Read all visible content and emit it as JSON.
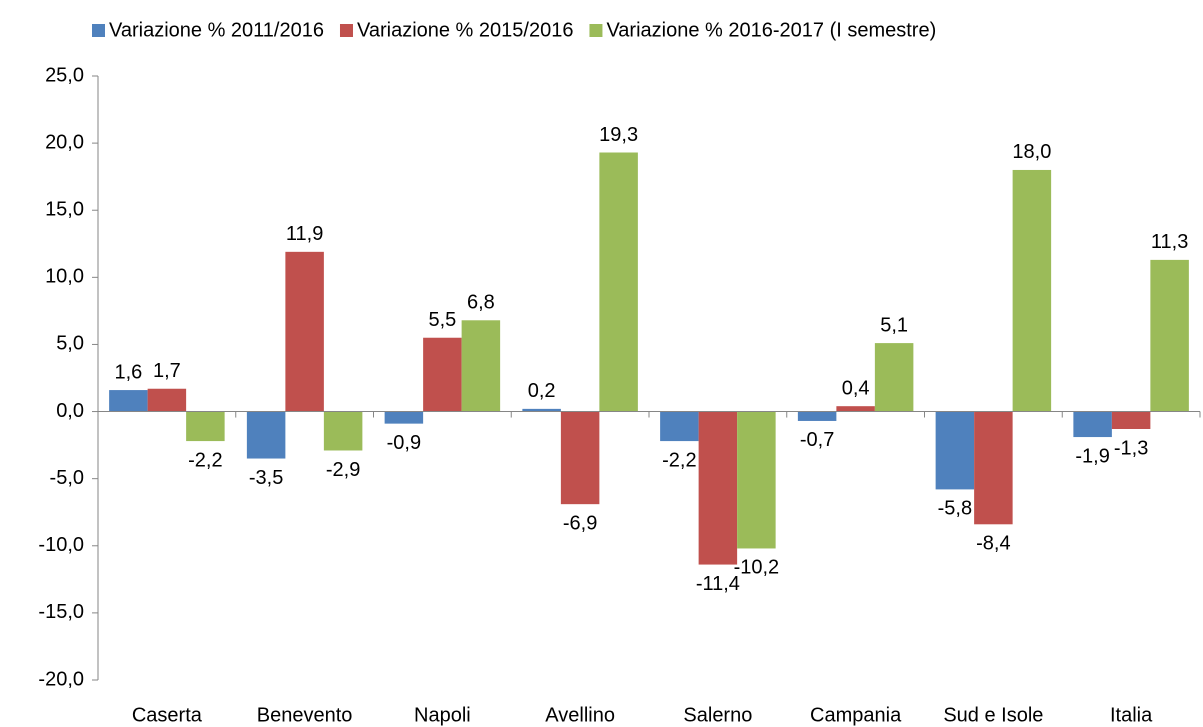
{
  "chart_data": {
    "type": "bar",
    "categories": [
      "Caserta",
      "Benevento",
      "Napoli",
      "Avellino",
      "Salerno",
      "Campania",
      "Sud e Isole",
      "Italia"
    ],
    "series": [
      {
        "name": "Variazione % 2011/2016",
        "color": "#4f81bd",
        "values": [
          1.6,
          -3.5,
          -0.9,
          0.2,
          -2.2,
          -0.7,
          -5.8,
          -1.9
        ],
        "value_labels": [
          "1,6",
          "-3,5",
          "-0,9",
          "0,2",
          "-2,2",
          "-0,7",
          "-5,8",
          "-1,9"
        ]
      },
      {
        "name": "Variazione % 2015/2016",
        "color": "#c0504d",
        "values": [
          1.7,
          11.9,
          5.5,
          -6.9,
          -11.4,
          0.4,
          -8.4,
          -1.3
        ],
        "value_labels": [
          "1,7",
          "11,9",
          "5,5",
          "-6,9",
          "-11,4",
          "0,4",
          "-8,4",
          "-1,3"
        ]
      },
      {
        "name": "Variazione % 2016-2017 (I semestre)",
        "color": "#9bbb59",
        "values": [
          -2.2,
          -2.9,
          6.8,
          19.3,
          -10.2,
          5.1,
          18.0,
          11.3
        ],
        "value_labels": [
          "-2,2",
          "-2,9",
          "6,8",
          "19,3",
          "-10,2",
          "5,1",
          "18,0",
          "11,3"
        ]
      }
    ],
    "ylim": [
      -20,
      25
    ],
    "yticks": [
      {
        "value": -20,
        "label": "-20,0"
      },
      {
        "value": -15,
        "label": "-15,0"
      },
      {
        "value": -10,
        "label": "-10,0"
      },
      {
        "value": -5,
        "label": "-5,0"
      },
      {
        "value": 0,
        "label": "0,0"
      },
      {
        "value": 5,
        "label": "5,0"
      },
      {
        "value": 10,
        "label": "10,0"
      },
      {
        "value": 15,
        "label": "15,0"
      },
      {
        "value": 20,
        "label": "20,0"
      },
      {
        "value": 25,
        "label": "25,0"
      }
    ],
    "legend": "top",
    "grid": false
  }
}
